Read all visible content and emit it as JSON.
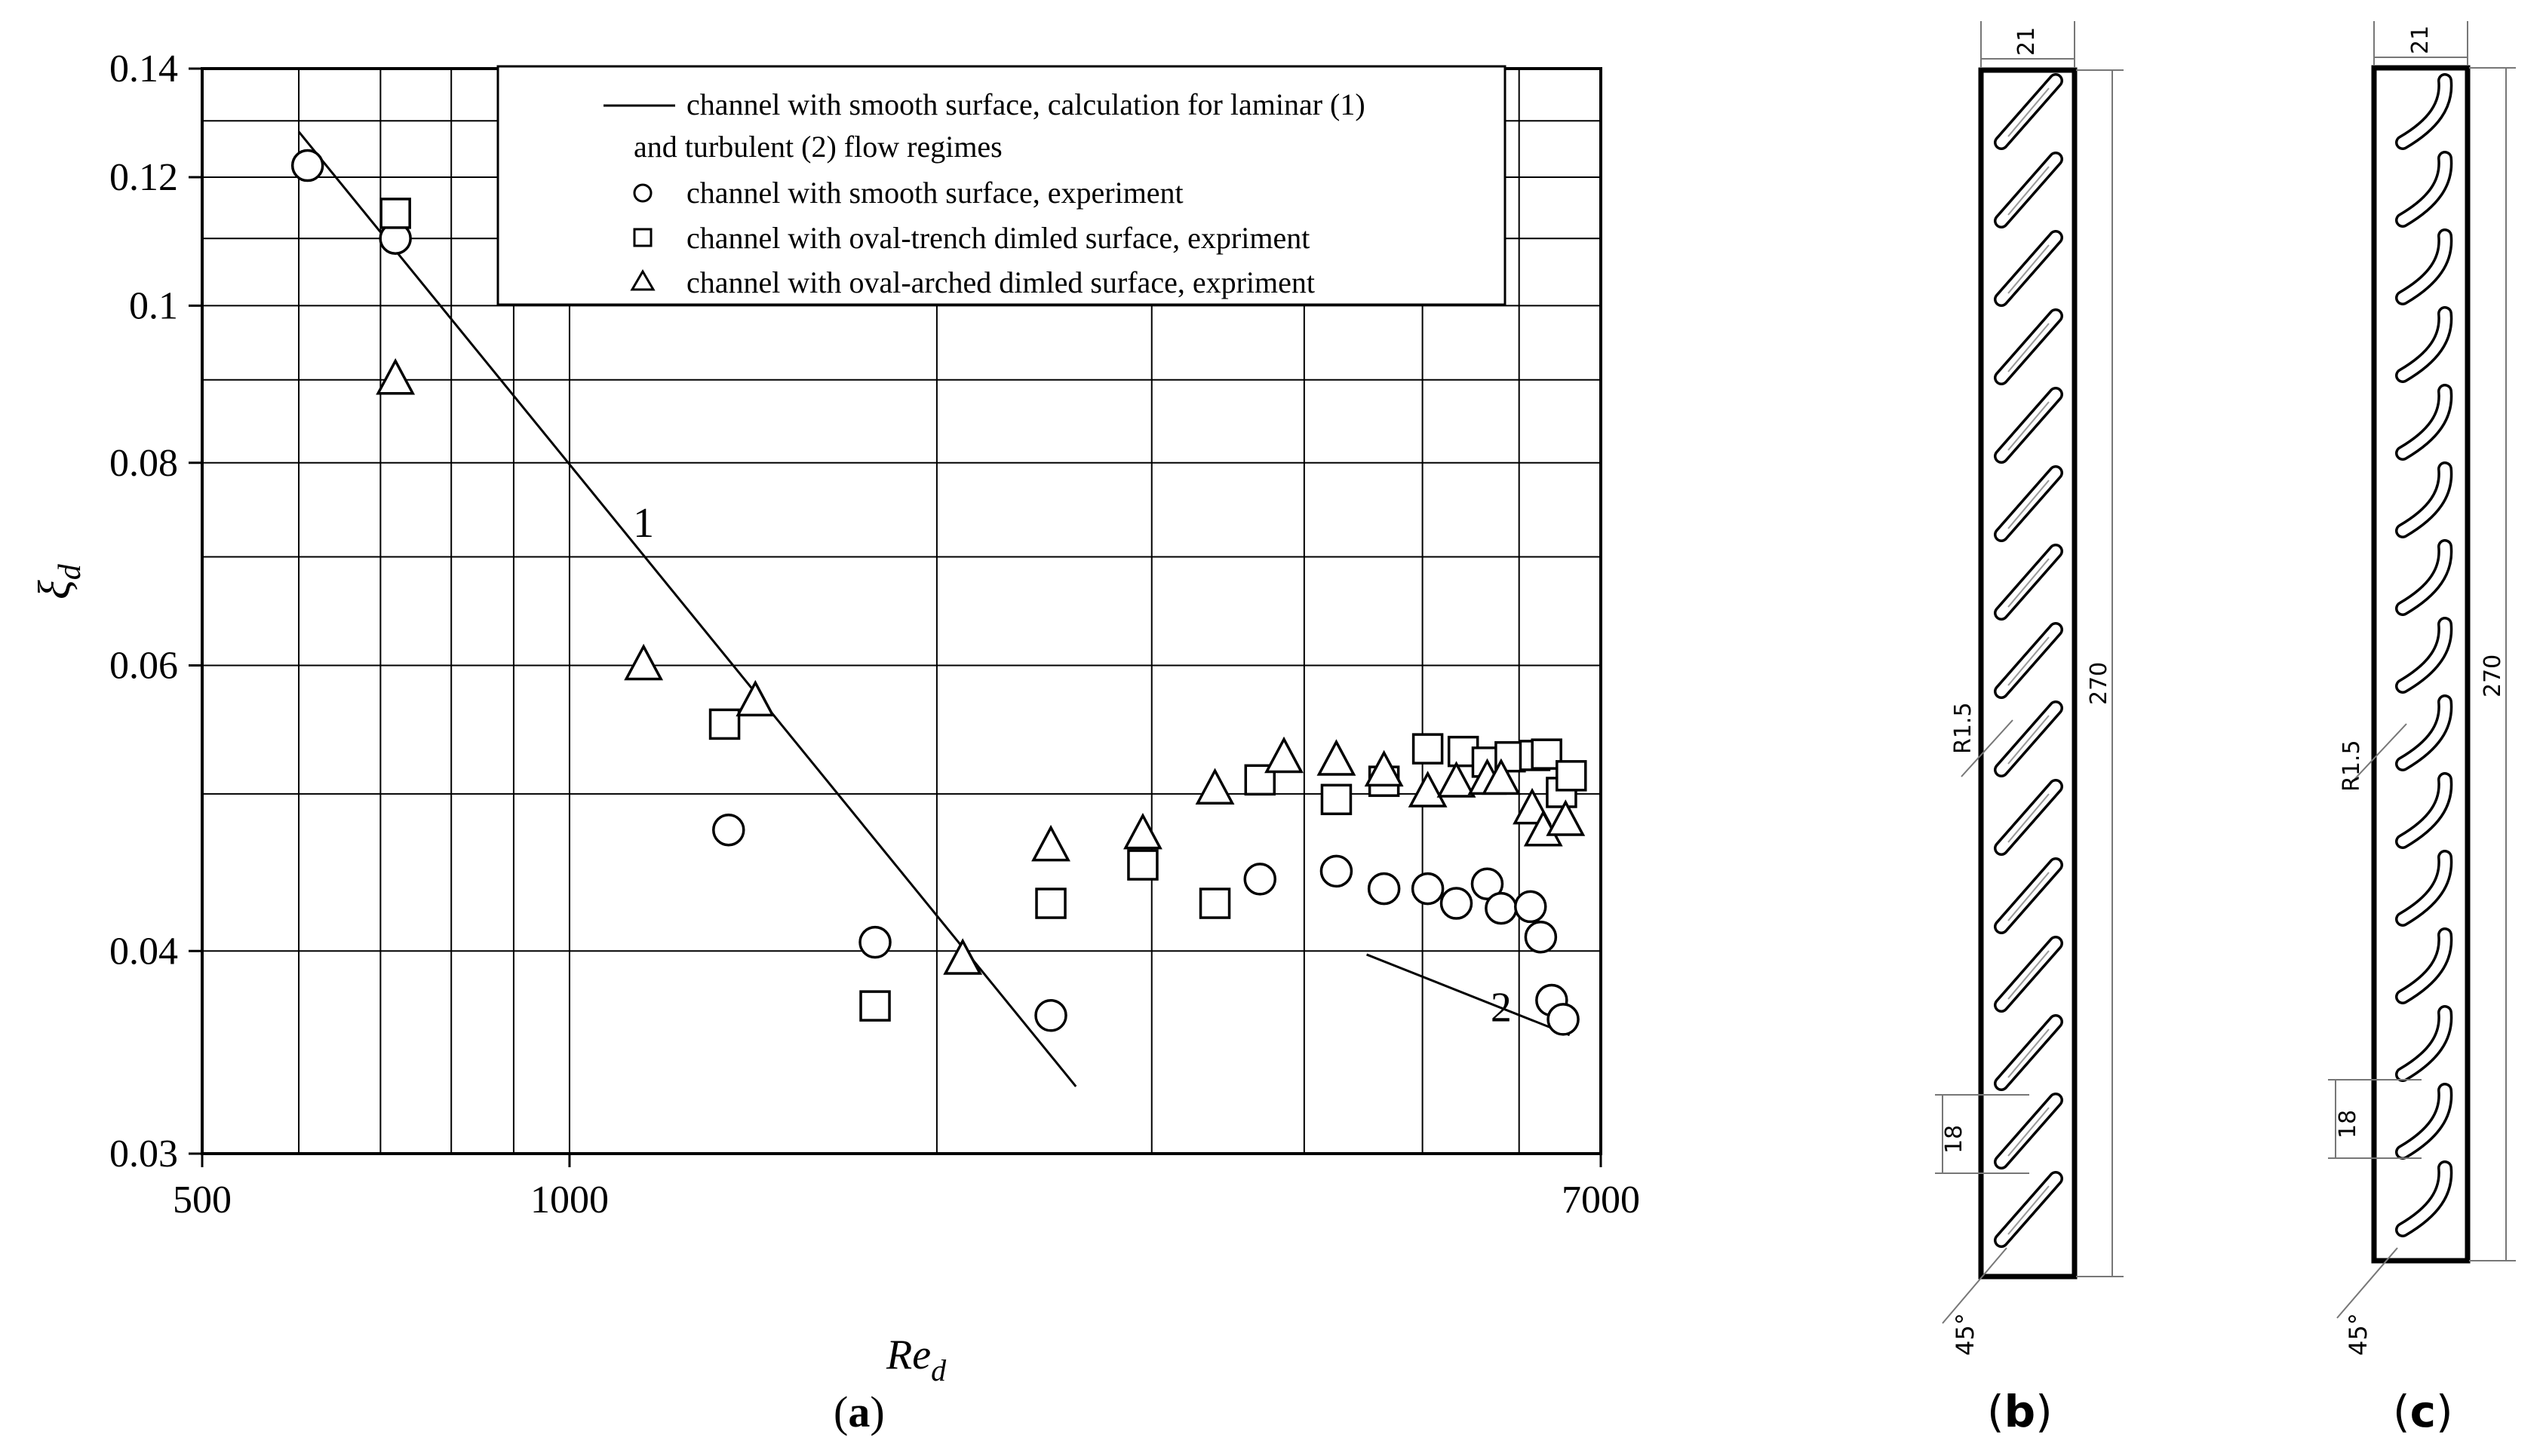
{
  "chart_data": {
    "type": "scatter",
    "xscale": "log",
    "yscale": "log",
    "xlim": [
      500,
      7000
    ],
    "ylim": [
      0.03,
      0.14
    ],
    "grid": true,
    "legend_position": "top",
    "xlabel": "Re",
    "xlabel_sub": "d",
    "ylabel": "ξ",
    "ylabel_sub": "d",
    "x_ticks": [
      {
        "value": 500,
        "label": "500"
      },
      {
        "value": 1000,
        "label": "1000"
      },
      {
        "value": 7000,
        "label": "7000"
      }
    ],
    "y_ticks": [
      {
        "value": 0.03,
        "label": "0.03"
      },
      {
        "value": 0.04,
        "label": "0.04"
      },
      {
        "value": 0.06,
        "label": "0.06"
      },
      {
        "value": 0.08,
        "label": "0.08"
      },
      {
        "value": 0.1,
        "label": "0.1"
      },
      {
        "value": 0.12,
        "label": "0.12"
      },
      {
        "value": 0.14,
        "label": "0.14"
      }
    ],
    "x_gridlines": [
      600,
      700,
      800,
      900,
      1000,
      2000,
      3000,
      4000,
      5000,
      6000
    ],
    "y_gridlines": [
      0.03,
      0.04,
      0.05,
      0.06,
      0.07,
      0.08,
      0.09,
      0.1,
      0.11,
      0.12,
      0.13,
      0.14
    ],
    "legend": [
      {
        "marker": "line",
        "text": "channel with smooth surface, calculation for laminar (1)"
      },
      {
        "marker": "none",
        "text": "and turbulent (2) flow regimes"
      },
      {
        "marker": "circle",
        "text": "channel with smooth surface, experiment"
      },
      {
        "marker": "square",
        "text": "channel with oval-trench dimled surface, expriment"
      },
      {
        "marker": "triangle",
        "text": "channel with oval-arched dimled surface, expriment"
      }
    ],
    "lines": [
      {
        "label": "1",
        "x": [
          600,
          2600
        ],
        "y": [
          0.128,
          0.033
        ],
        "label_at": [
          1150,
          0.072
        ]
      },
      {
        "label": "2",
        "x": [
          4500,
          6600
        ],
        "y": [
          0.0398,
          0.0355
        ],
        "label_at": [
          5800,
          0.0362
        ]
      }
    ],
    "series": [
      {
        "name": "channel with smooth surface, experiment",
        "marker": "circle",
        "x": [
          610,
          720,
          1350,
          1780,
          2480,
          3680,
          4250,
          4650,
          5050,
          5330,
          5650,
          5800,
          6130,
          6250,
          6380,
          6520
        ],
        "y": [
          0.122,
          0.11,
          0.0475,
          0.0405,
          0.0365,
          0.0443,
          0.0448,
          0.0437,
          0.0437,
          0.0428,
          0.044,
          0.0425,
          0.0426,
          0.0408,
          0.0373,
          0.0363
        ]
      },
      {
        "name": "channel with oval-trench dimled surface, expriment",
        "marker": "square",
        "x": [
          720,
          1340,
          1780,
          2480,
          2950,
          3380,
          3680,
          4250,
          4650,
          5050,
          5400,
          5650,
          5900,
          6180,
          6320,
          6500,
          6620
        ],
        "y": [
          0.114,
          0.0552,
          0.037,
          0.0428,
          0.0452,
          0.0428,
          0.051,
          0.0496,
          0.0509,
          0.0533,
          0.0531,
          0.0523,
          0.0527,
          0.0528,
          0.0529,
          0.0501,
          0.0513
        ]
      },
      {
        "name": "channel with oval-arched dimled surface, expriment",
        "marker": "triangle",
        "x": [
          720,
          1150,
          1420,
          2100,
          2480,
          2950,
          3380,
          3850,
          4250,
          4650,
          5050,
          5330,
          5650,
          5800,
          6150,
          6280,
          6550
        ],
        "y": [
          0.09,
          0.06,
          0.057,
          0.0395,
          0.0464,
          0.0472,
          0.0503,
          0.0526,
          0.0524,
          0.0516,
          0.0501,
          0.0508,
          0.051,
          0.051,
          0.0489,
          0.0474,
          0.0481
        ]
      }
    ]
  },
  "panel_a_label": {
    "open": "(",
    "letter": "a",
    "close": ")"
  },
  "panel_b": {
    "label": {
      "open": "(",
      "letter": "b",
      "close": ")"
    },
    "dim_width": "21",
    "dim_height": "270",
    "radius": "R1.5",
    "pitch": "18",
    "angle": "45°",
    "dimple_count": 15,
    "dimple_shape": "oval-trench"
  },
  "panel_c": {
    "label": {
      "open": "(",
      "letter": "c",
      "close": ")"
    },
    "dim_width": "21",
    "dim_height": "270",
    "radius": "R1.5",
    "pitch": "18",
    "angle": "45°",
    "dimple_count": 15,
    "dimple_shape": "oval-arched"
  }
}
